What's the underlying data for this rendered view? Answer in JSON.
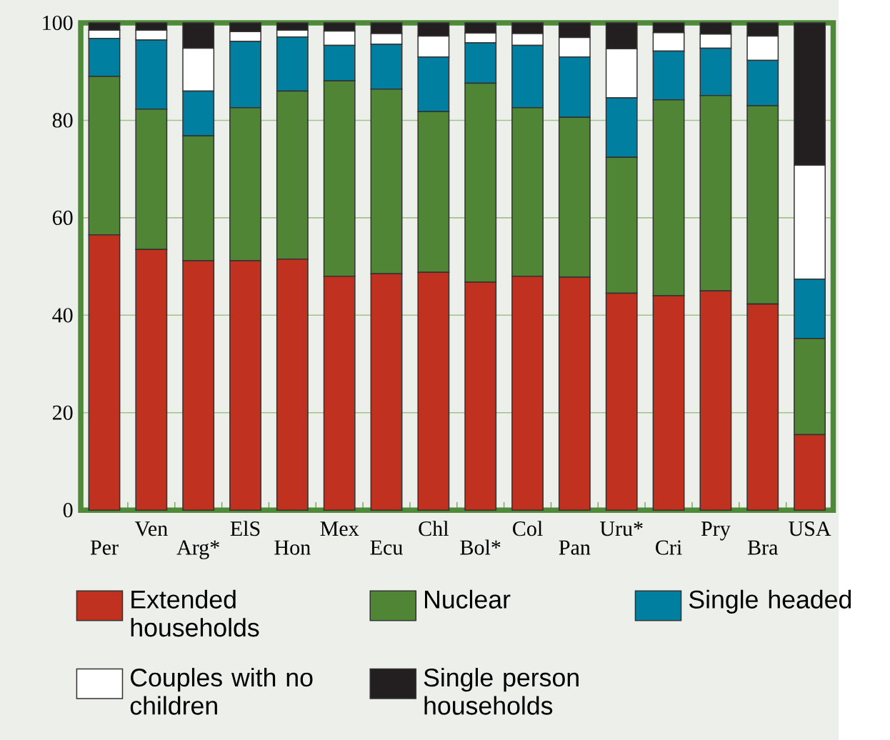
{
  "chart_data": {
    "type": "bar",
    "stacked": true,
    "categories": [
      "Per",
      "Ven",
      "Arg*",
      "ElS",
      "Hon",
      "Mex",
      "Ecu",
      "Chl",
      "Bol*",
      "Col",
      "Pan",
      "Uru*",
      "Cri",
      "Pry",
      "Bra",
      "USA"
    ],
    "series": [
      {
        "name": "Extended households",
        "color": "#c0311f",
        "values": [
          56.5,
          53.5,
          51.2,
          51.2,
          51.5,
          48,
          48.5,
          48.8,
          46.8,
          48,
          47.8,
          44.5,
          44,
          45,
          42.3,
          15.5
        ]
      },
      {
        "name": "Nuclear",
        "color": "#508535",
        "values": [
          32.5,
          28.8,
          25.6,
          31.4,
          34.5,
          40.1,
          37.9,
          33,
          40.8,
          34.6,
          32.8,
          27.9,
          40.2,
          40.1,
          40.7,
          19.7
        ]
      },
      {
        "name": "Single headed",
        "color": "#007fa0",
        "values": [
          7.8,
          14.2,
          9.2,
          13.6,
          11.1,
          7.3,
          9.2,
          11.2,
          8.3,
          12.8,
          12.4,
          12.2,
          10,
          9.7,
          9.3,
          12.2
        ]
      },
      {
        "name": "Couples with no children",
        "color": "#ffffff",
        "values": [
          1.7,
          2,
          8.8,
          2,
          1.4,
          2.9,
          2.2,
          4.3,
          2,
          2.4,
          4,
          10.1,
          3.8,
          2.9,
          5,
          23.4
        ]
      },
      {
        "name": "Single person households",
        "color": "#231f20",
        "values": [
          1.5,
          1.5,
          5.2,
          1.8,
          1.5,
          1.7,
          2.2,
          2.7,
          2.1,
          2.2,
          3,
          5.3,
          2,
          2.3,
          2.7,
          29.2
        ]
      }
    ],
    "ylim": [
      0,
      100
    ],
    "yticks": [
      0,
      20,
      40,
      60,
      80,
      100
    ],
    "grid": "y",
    "legend": "bottom"
  }
}
